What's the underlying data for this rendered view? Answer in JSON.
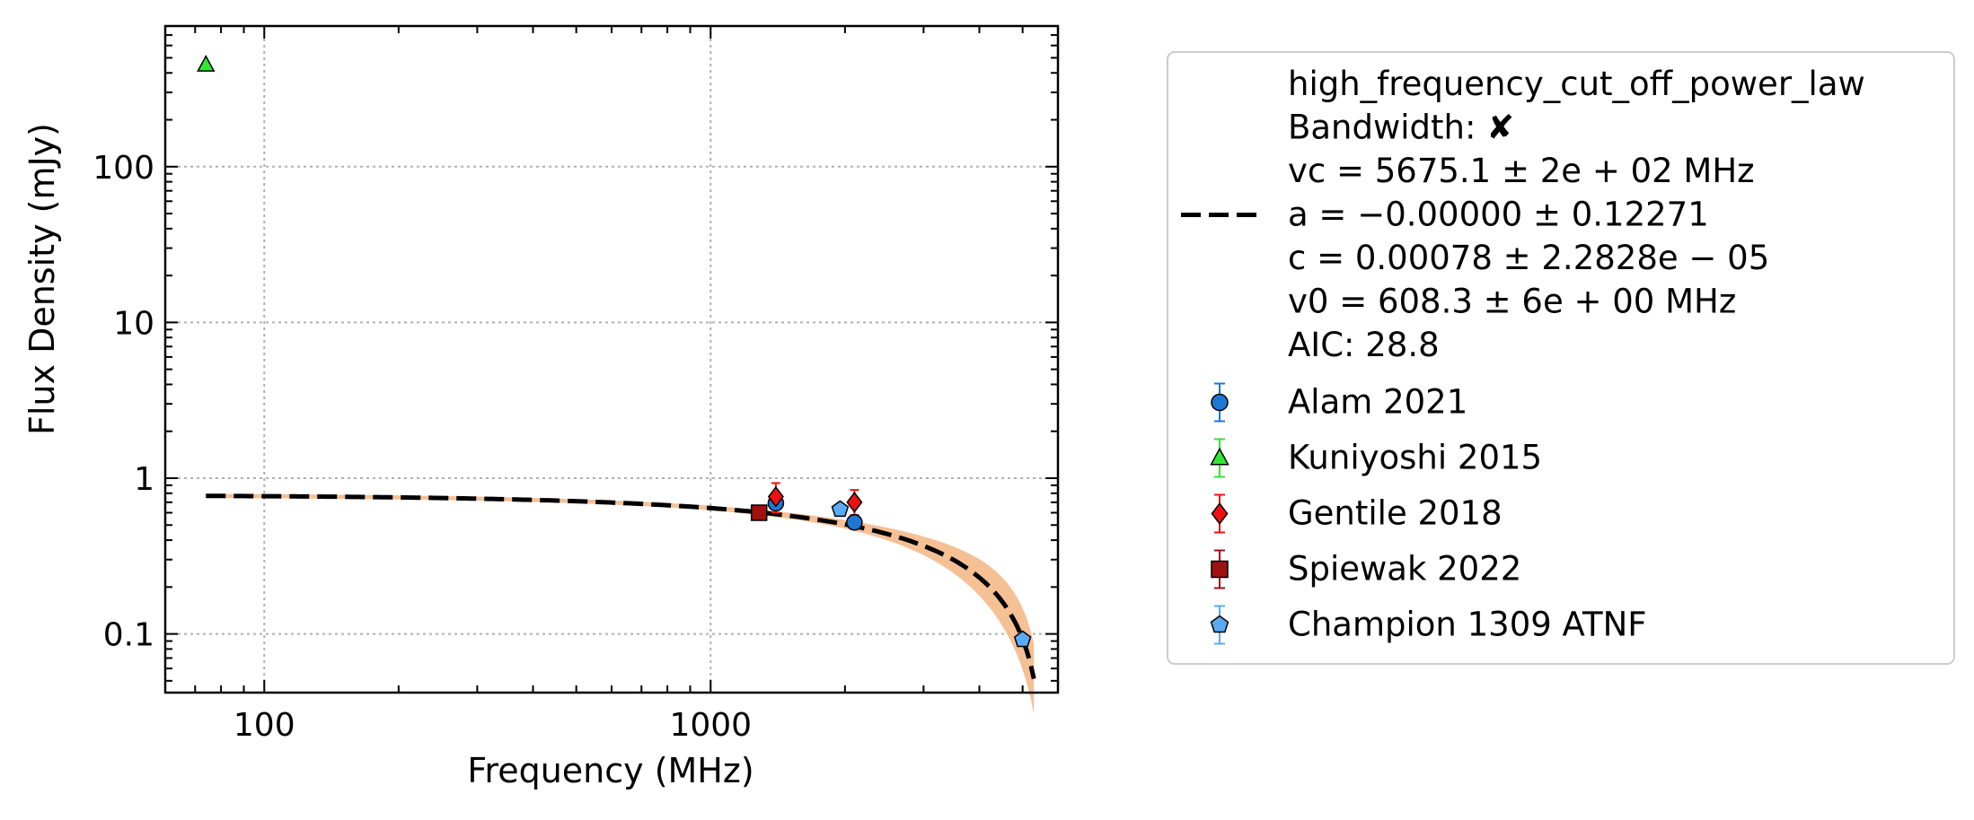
{
  "chart_data": {
    "type": "scatter",
    "title": "",
    "xlabel": "Frequency (MHz)",
    "ylabel": "Flux Density (mJy)",
    "xscale": "log",
    "yscale": "log",
    "xlim": [
      60,
      6000
    ],
    "ylim": [
      0.042,
      800
    ],
    "grid": true,
    "legend_position": "outside-right",
    "x_ticks": [
      {
        "value": 100,
        "label": "100"
      },
      {
        "value": 1000,
        "label": "1000"
      }
    ],
    "y_ticks": [
      {
        "value": 0.1,
        "label": "0.1"
      },
      {
        "value": 1,
        "label": "1"
      },
      {
        "value": 10,
        "label": "10"
      },
      {
        "value": 100,
        "label": "100"
      }
    ],
    "fit": {
      "name": "high_frequency_cut_off_power_law",
      "legend_lines": [
        "high_frequency_cut_off_power_law",
        "Bandwidth: ✘",
        "vc = 5675.1 ± 2e + 02 MHz",
        "a = −0.00000 ± 0.12271",
        "c = 0.00078 ± 2.2828e − 05",
        "v0 = 608.3 ± 6e + 00 MHz",
        "AIC: 28.8"
      ],
      "color": "#000000",
      "band_color": "#f5b98a",
      "vc": 5675.1,
      "a": 0.0,
      "c": 0.00078,
      "v0": 608.3,
      "x_range": [
        74,
        5300
      ]
    },
    "series": [
      {
        "name": "Alam 2021",
        "marker": "circle",
        "color": "#1f77d4",
        "error_color": "#1f77d4",
        "points": [
          {
            "x": 1400,
            "y": 0.69,
            "yerr": [
              0.06,
              0.06
            ]
          },
          {
            "x": 2100,
            "y": 0.52,
            "yerr": [
              0.04,
              0.04
            ]
          }
        ]
      },
      {
        "name": "Kuniyoshi 2015",
        "marker": "triangle",
        "color": "#33e633",
        "error_color": "#33e633",
        "points": [
          {
            "x": 74,
            "y": 450,
            "yerr": [
              0,
              0
            ]
          }
        ]
      },
      {
        "name": "Gentile 2018",
        "marker": "diamond",
        "color": "#ee1111",
        "error_color": "#ee1111",
        "points": [
          {
            "x": 1400,
            "y": 0.76,
            "yerr": [
              0.16,
              0.17
            ]
          },
          {
            "x": 2100,
            "y": 0.7,
            "yerr": [
              0.12,
              0.14
            ]
          }
        ]
      },
      {
        "name": "Spiewak 2022",
        "marker": "square",
        "color": "#a01010",
        "error_color": "#a01010",
        "points": [
          {
            "x": 1284,
            "y": 0.6,
            "yerr": [
              0.02,
              0.02
            ]
          }
        ]
      },
      {
        "name": "Champion 1309 ATNF",
        "marker": "pentagon",
        "color": "#5aaaf5",
        "error_color": "#5aaaf5",
        "points": [
          {
            "x": 1950,
            "y": 0.63,
            "yerr": [
              0.03,
              0.03
            ]
          },
          {
            "x": 5000,
            "y": 0.092,
            "yerr": [
              0.005,
              0.005
            ]
          }
        ]
      }
    ]
  }
}
